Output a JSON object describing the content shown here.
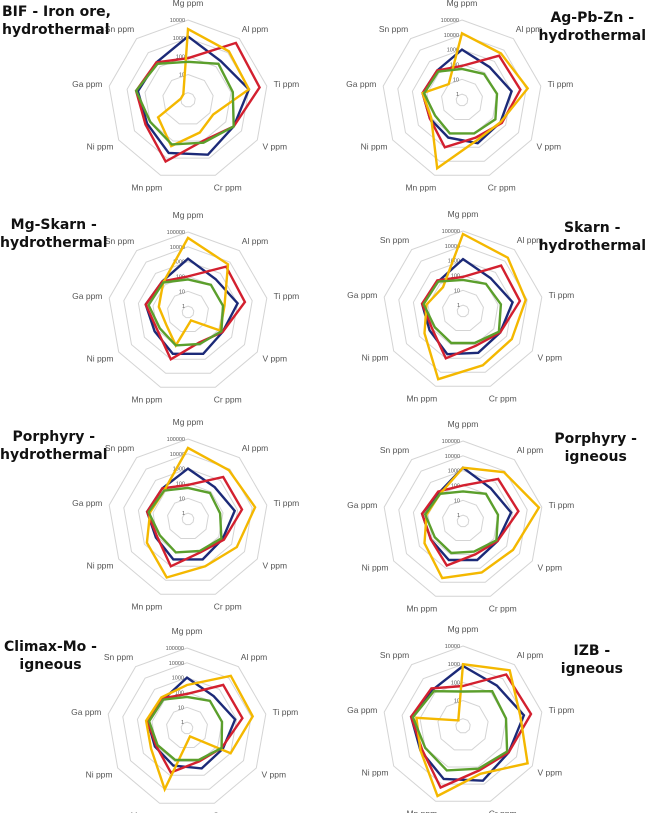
{
  "colors": {
    "blue": "#1c2a78",
    "red": "#d3202f",
    "yellow": "#f4b800",
    "green": "#5b9f2c",
    "grid": "#d4d4d4"
  },
  "chart_data": [
    {
      "type": "radar",
      "title": [
        "BIF - Iron ore,",
        "hydrothermal"
      ],
      "axes": [
        "Mg ppm",
        "Al ppm",
        "Ti ppm",
        "V ppm",
        "Cr ppm",
        "Mn ppm",
        "Ni ppm",
        "Ga ppm",
        "Sn ppm"
      ],
      "scale": "log10",
      "ticks": [
        "1",
        "10",
        "100",
        "1000",
        "10000"
      ],
      "series": [
        {
          "color": "blue",
          "log10_ppm": [
            3.1,
            2.4,
            3.0,
            2.5,
            2.8,
            2.7,
            2.2,
            2.4,
            2.3
          ]
        },
        {
          "color": "red",
          "log10_ppm": [
            1.9,
            3.7,
            3.6,
            2.5,
            2.0,
            3.2,
            2.3,
            2.5,
            2.3
          ]
        },
        {
          "color": "yellow",
          "log10_ppm": [
            3.5,
            3.1,
            3.0,
            1.2,
            1.5,
            2.3,
            1.5,
            0.0,
            0.0
          ]
        },
        {
          "color": "green",
          "log10_ppm": [
            1.7,
            2.2,
            2.1,
            2.5,
            2.1,
            2.2,
            2.0,
            2.5,
            2.2
          ]
        }
      ]
    },
    {
      "type": "radar",
      "title": [
        "Ag-Pb-Zn -",
        "hydrothermal"
      ],
      "axes": [
        "Mg ppm",
        "Al ppm",
        "Ti ppm",
        "V ppm",
        "Cr ppm",
        "Mn ppm",
        "Ni ppm",
        "Ga ppm",
        "Sn ppm"
      ],
      "scale": "log10",
      "ticks": [
        "1",
        "10",
        "100",
        "1000",
        "10000",
        "100000"
      ],
      "series": [
        {
          "color": "blue",
          "log10_ppm": [
            3.0,
            2.5,
            3.0,
            2.6,
            2.7,
            2.3,
            2.1,
            2.3,
            2.2
          ]
        },
        {
          "color": "red",
          "log10_ppm": [
            1.9,
            3.5,
            3.6,
            2.7,
            2.3,
            3.0,
            2.1,
            2.3,
            2.2
          ]
        },
        {
          "color": "yellow",
          "log10_ppm": [
            4.1,
            3.7,
            4.1,
            2.6,
            2.5,
            4.5,
            2.0,
            2.3,
            1.0
          ]
        },
        {
          "color": "green",
          "log10_ppm": [
            1.7,
            1.9,
            2.0,
            2.2,
            2.0,
            2.0,
            1.7,
            2.2,
            2.1
          ]
        }
      ]
    },
    {
      "type": "radar",
      "title": [
        "Mg-Skarn -",
        "hydrothermal"
      ],
      "axes": [
        "Mg ppm",
        "Al ppm",
        "Ti ppm",
        "V ppm",
        "Cr ppm",
        "Mn ppm",
        "Ni ppm",
        "Ga ppm",
        "Sn ppm"
      ],
      "scale": "log10",
      "ticks": [
        "1",
        "10",
        "100",
        "1000",
        "10000",
        "100000"
      ],
      "series": [
        {
          "color": "blue",
          "log10_ppm": [
            3.2,
            2.5,
            3.0,
            2.3,
            2.6,
            2.6,
            2.2,
            2.5,
            2.3
          ]
        },
        {
          "color": "red",
          "log10_ppm": [
            2.0,
            3.6,
            3.5,
            2.3,
            1.8,
            3.0,
            2.0,
            2.5,
            2.3
          ]
        },
        {
          "color": "yellow",
          "log10_ppm": [
            4.6,
            3.8,
            2.1,
            2.1,
            0.2,
            2.0,
            1.3,
            1.6,
            2.2
          ]
        },
        {
          "color": "green",
          "log10_ppm": [
            1.8,
            2.0,
            2.0,
            2.2,
            1.9,
            2.0,
            1.8,
            2.3,
            2.2
          ]
        }
      ]
    },
    {
      "type": "radar",
      "title": [
        "Skarn -",
        "hydrothermal"
      ],
      "axes": [
        "Mg ppm",
        "Al ppm",
        "Ti ppm",
        "V ppm",
        "Cr ppm",
        "Mn ppm",
        "Ni ppm",
        "Ga ppm",
        "Sn ppm"
      ],
      "scale": "log10",
      "ticks": [
        "1",
        "10",
        "100",
        "1000",
        "10000",
        "100000"
      ],
      "series": [
        {
          "color": "blue",
          "log10_ppm": [
            3.1,
            2.5,
            3.0,
            2.5,
            2.6,
            2.7,
            2.2,
            2.4,
            2.2
          ]
        },
        {
          "color": "red",
          "log10_ppm": [
            1.9,
            3.6,
            3.5,
            2.5,
            2.1,
            3.0,
            2.0,
            2.4,
            2.3
          ]
        },
        {
          "color": "yellow",
          "log10_ppm": [
            4.8,
            4.3,
            3.9,
            3.4,
            3.5,
            4.5,
            2.6,
            2.1,
            1.7
          ]
        },
        {
          "color": "green",
          "log10_ppm": [
            1.7,
            2.0,
            2.2,
            2.4,
            1.9,
            1.9,
            1.8,
            2.3,
            2.2
          ]
        }
      ]
    },
    {
      "type": "radar",
      "title": [
        "Porphyry -",
        "hydrothermal"
      ],
      "axes": [
        "Mg ppm",
        "Al ppm",
        "Ti ppm",
        "V ppm",
        "Cr ppm",
        "Mn ppm",
        "Ni ppm",
        "Ga ppm",
        "Sn ppm"
      ],
      "scale": "log10",
      "ticks": [
        "1",
        "10",
        "100",
        "1000",
        "10000",
        "100000"
      ],
      "series": [
        {
          "color": "blue",
          "log10_ppm": [
            3.0,
            2.4,
            2.8,
            2.3,
            2.5,
            2.5,
            2.1,
            2.4,
            2.3
          ]
        },
        {
          "color": "red",
          "log10_ppm": [
            1.9,
            3.3,
            3.3,
            2.4,
            2.0,
            3.0,
            2.0,
            2.4,
            2.3
          ]
        },
        {
          "color": "yellow",
          "log10_ppm": [
            4.4,
            3.9,
            4.2,
            3.4,
            3.0,
            3.8,
            2.8,
            2.2,
            2.1
          ]
        },
        {
          "color": "green",
          "log10_ppm": [
            1.7,
            1.9,
            1.8,
            2.2,
            1.9,
            2.0,
            1.8,
            2.3,
            2.1
          ]
        }
      ]
    },
    {
      "type": "radar",
      "title": [
        "Porphyry -",
        "igneous"
      ],
      "axes": [
        "Mg ppm",
        "Al ppm",
        "Ti ppm",
        "V ppm",
        "Cr ppm",
        "Mn ppm",
        "Ni ppm",
        "Ga ppm",
        "Sn ppm"
      ],
      "scale": "log10",
      "ticks": [
        "1",
        "10",
        "100",
        "1000",
        "10000",
        "100000"
      ],
      "series": [
        {
          "color": "blue",
          "log10_ppm": [
            3.2,
            2.5,
            2.9,
            2.3,
            2.4,
            2.4,
            2.1,
            2.4,
            2.1
          ]
        },
        {
          "color": "red",
          "log10_ppm": [
            2.0,
            3.3,
            3.4,
            2.3,
            2.0,
            2.8,
            2.1,
            2.4,
            2.2
          ]
        },
        {
          "color": "yellow",
          "log10_ppm": [
            3.2,
            3.9,
            4.8,
            3.5,
            3.3,
            3.7,
            2.6,
            2.1,
            2.0
          ]
        },
        {
          "color": "green",
          "log10_ppm": [
            1.6,
            2.0,
            2.0,
            2.2,
            1.8,
            1.9,
            1.8,
            2.2,
            2.0
          ]
        }
      ]
    },
    {
      "type": "radar",
      "title": [
        "Climax-Mo -",
        "igneous"
      ],
      "axes": [
        "Mg ppm",
        "Al ppm",
        "Ti ppm",
        "V ppm",
        "Cr ppm",
        "Mn ppm",
        "Ni ppm",
        "Ga ppm",
        "Sn ppm"
      ],
      "scale": "log10",
      "ticks": [
        "1",
        "10",
        "100",
        "1000",
        "10000",
        "100000"
      ],
      "series": [
        {
          "color": "blue",
          "log10_ppm": [
            3.0,
            2.4,
            2.9,
            2.4,
            2.5,
            2.3,
            2.1,
            2.3,
            2.1
          ]
        },
        {
          "color": "red",
          "log10_ppm": [
            1.9,
            3.4,
            3.4,
            2.3,
            2.0,
            2.8,
            2.0,
            2.3,
            2.2
          ]
        },
        {
          "color": "yellow",
          "log10_ppm": [
            2.5,
            4.2,
            4.1,
            3.0,
            0.2,
            4.0,
            2.4,
            2.4,
            2.3
          ]
        },
        {
          "color": "green",
          "log10_ppm": [
            1.7,
            2.0,
            2.0,
            2.3,
            1.9,
            1.9,
            1.9,
            2.2,
            2.1
          ]
        }
      ]
    },
    {
      "type": "radar",
      "title": [
        "IZB -",
        "igneous"
      ],
      "axes": [
        "Mg ppm",
        "Al ppm",
        "Ti ppm",
        "V ppm",
        "Cr ppm",
        "Mn ppm",
        "Ni ppm",
        "Ga ppm",
        "Sn ppm"
      ],
      "scale": "log10",
      "ticks": [
        "1",
        "10",
        "100",
        "1000",
        "10000"
      ],
      "series": [
        {
          "color": "blue",
          "log10_ppm": [
            2.9,
            2.5,
            3.0,
            2.5,
            2.8,
            2.7,
            2.3,
            2.5,
            2.2
          ]
        },
        {
          "color": "red",
          "log10_ppm": [
            1.8,
            3.3,
            3.4,
            2.5,
            2.2,
            3.2,
            2.2,
            2.5,
            2.3
          ]
        },
        {
          "color": "yellow",
          "log10_ppm": [
            3.0,
            3.6,
            2.8,
            3.7,
            2.4,
            3.7,
            2.3,
            2.2,
            0.0
          ]
        },
        {
          "color": "green",
          "log10_ppm": [
            1.5,
            2.1,
            2.0,
            2.4,
            2.1,
            2.2,
            2.0,
            2.4,
            2.1
          ]
        }
      ]
    }
  ]
}
